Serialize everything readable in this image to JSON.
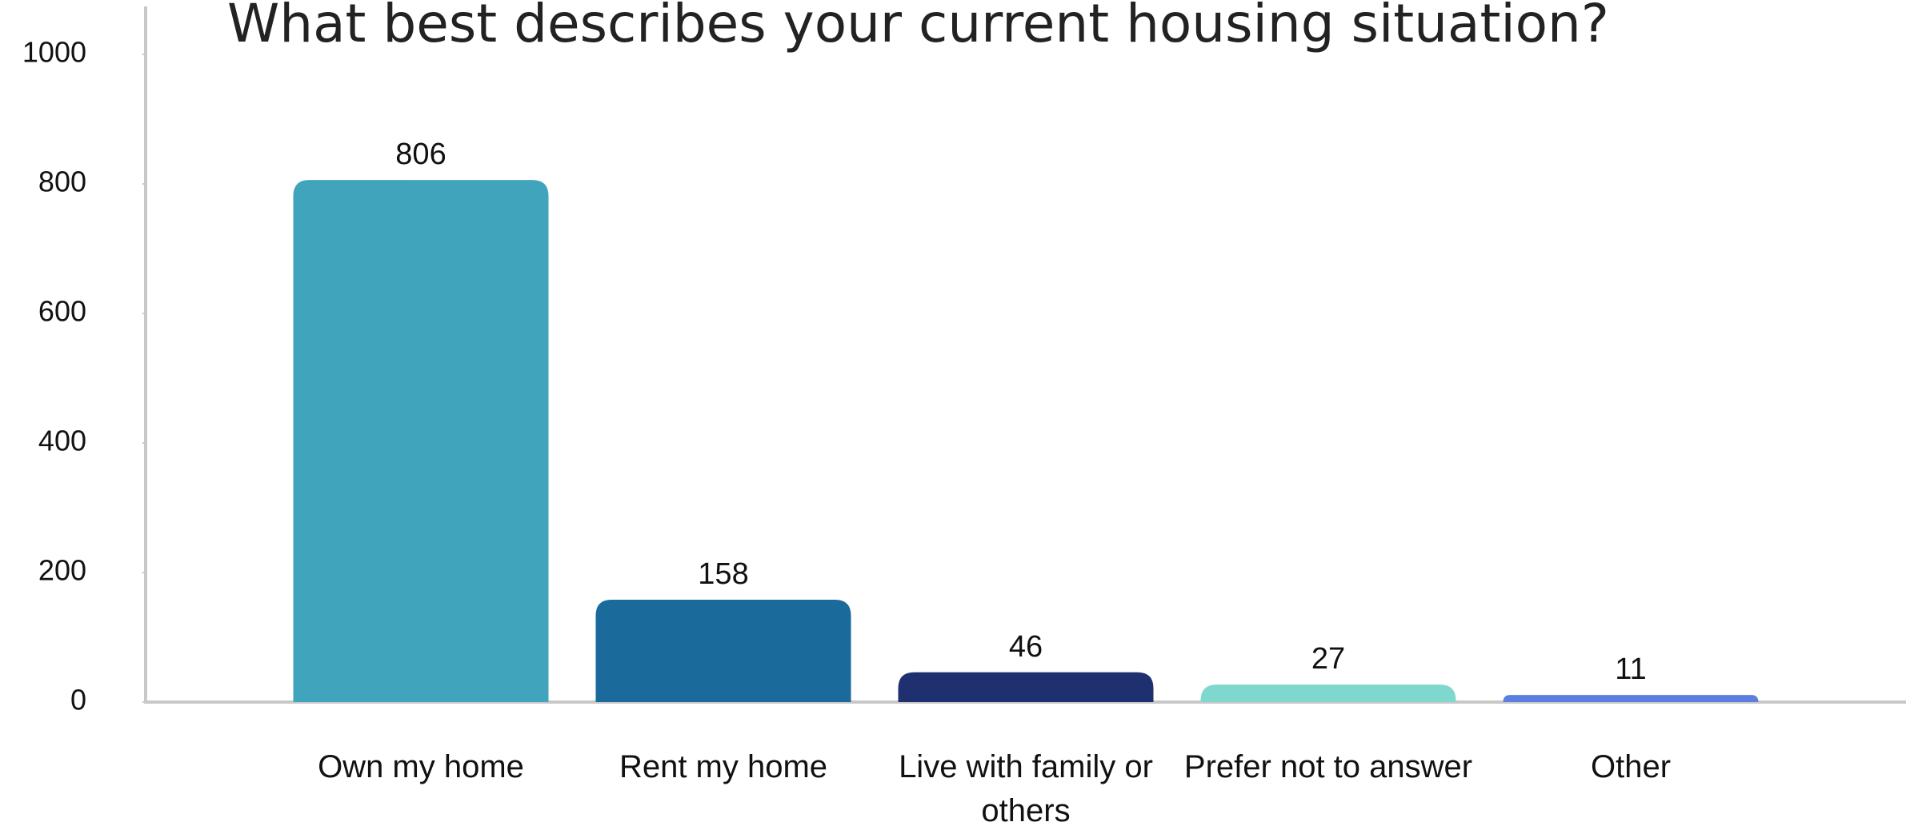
{
  "chart_data": {
    "type": "bar",
    "title": "What best describes your current housing situation?",
    "categories": [
      "Own my home",
      "Rent my home",
      "Live with family or others",
      "Prefer not to answer",
      "Other"
    ],
    "values": [
      806,
      158,
      46,
      27,
      11
    ],
    "colors": [
      "#41a4bd",
      "#1a6b9c",
      "#1f3070",
      "#7fd8cd",
      "#5b7fe0"
    ],
    "ylim": [
      0,
      1000
    ],
    "yticks": [
      0,
      200,
      400,
      600,
      800,
      1000
    ],
    "grid": false
  }
}
